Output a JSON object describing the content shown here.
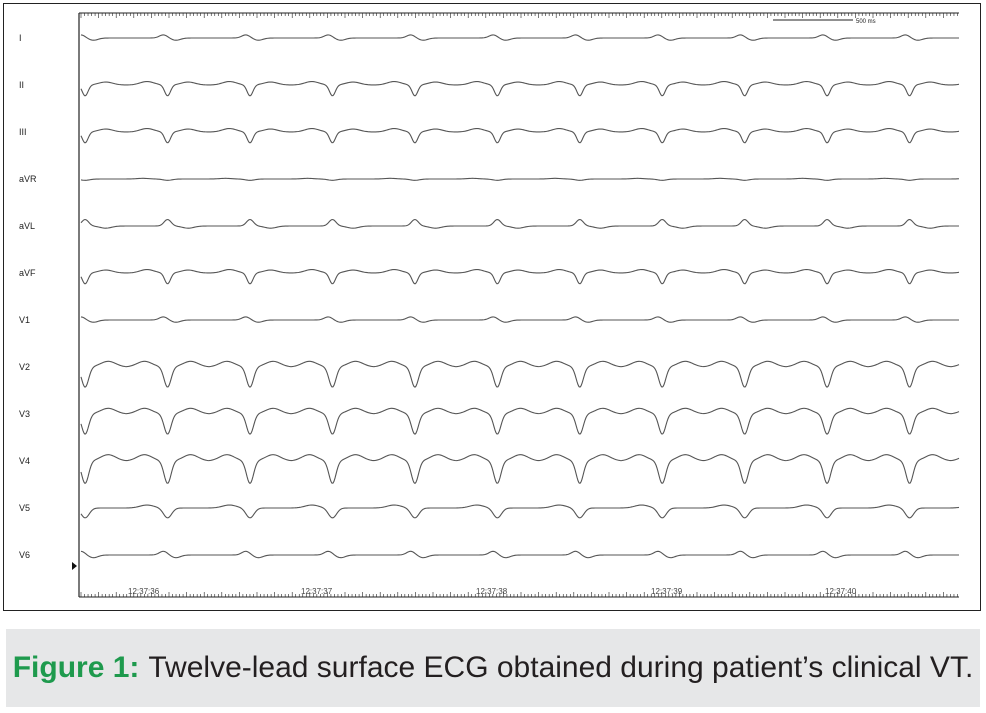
{
  "ecg": {
    "scale_bar_label": "500 ms",
    "leads": [
      {
        "name": "I",
        "shape": "low-bump",
        "amplitude": 0.25
      },
      {
        "name": "II",
        "shape": "deep-notch",
        "amplitude": 0.55
      },
      {
        "name": "III",
        "shape": "deep-notch",
        "amplitude": 0.55
      },
      {
        "name": "aVR",
        "shape": "flat",
        "amplitude": 0.12
      },
      {
        "name": "aVL",
        "shape": "up-bump",
        "amplitude": 0.4
      },
      {
        "name": "aVF",
        "shape": "deep-notch",
        "amplitude": 0.55
      },
      {
        "name": "V1",
        "shape": "low-bump",
        "amplitude": 0.25
      },
      {
        "name": "V2",
        "shape": "deep-v",
        "amplitude": 0.9
      },
      {
        "name": "V3",
        "shape": "deep-v",
        "amplitude": 0.9
      },
      {
        "name": "V4",
        "shape": "deep-v",
        "amplitude": 1.0
      },
      {
        "name": "V5",
        "shape": "medium-v",
        "amplitude": 0.55
      },
      {
        "name": "V6",
        "shape": "low-bump",
        "amplitude": 0.3
      }
    ],
    "beats": 11,
    "time_labels": [
      "12:37:36",
      "12:37:37",
      "12:37:38",
      "12:37:39",
      "12:37:40"
    ],
    "trace_color": "#555555",
    "frame_color": "#222222"
  },
  "caption": {
    "label": "Figure 1:",
    "text": "Twelve-lead surface ECG obtained during patient’s clinical VT.",
    "label_color": "#1e9a4d",
    "bar_color": "#e6e7e8"
  }
}
